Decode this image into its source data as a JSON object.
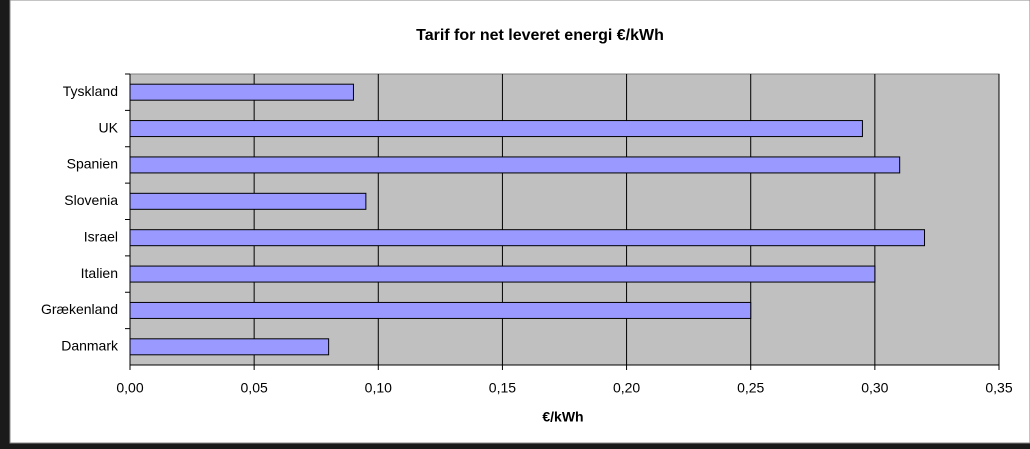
{
  "chart_data": {
    "type": "bar",
    "orientation": "horizontal",
    "title": "Tarif for net leveret energi €/kWh",
    "x_label": "€/kWh",
    "categories": [
      "Tyskland",
      "UK",
      "Spanien",
      "Slovenia",
      "Israel",
      "Italien",
      "Grækenland",
      "Danmark"
    ],
    "values": [
      0.09,
      0.295,
      0.31,
      0.095,
      0.32,
      0.3,
      0.25,
      0.08
    ],
    "color": "#9999ff",
    "xlim": [
      0,
      0.35
    ],
    "xticks": [
      {
        "value": 0,
        "label": "0,00"
      },
      {
        "value": 0.05,
        "label": "0,05"
      },
      {
        "value": 0.1,
        "label": "0,10"
      },
      {
        "value": 0.15,
        "label": "0,15"
      },
      {
        "value": 0.2,
        "label": "0,20"
      },
      {
        "value": 0.25,
        "label": "0,25"
      },
      {
        "value": 0.3,
        "label": "0,30"
      },
      {
        "value": 0.35,
        "label": "0,35"
      }
    ],
    "grid": true
  }
}
